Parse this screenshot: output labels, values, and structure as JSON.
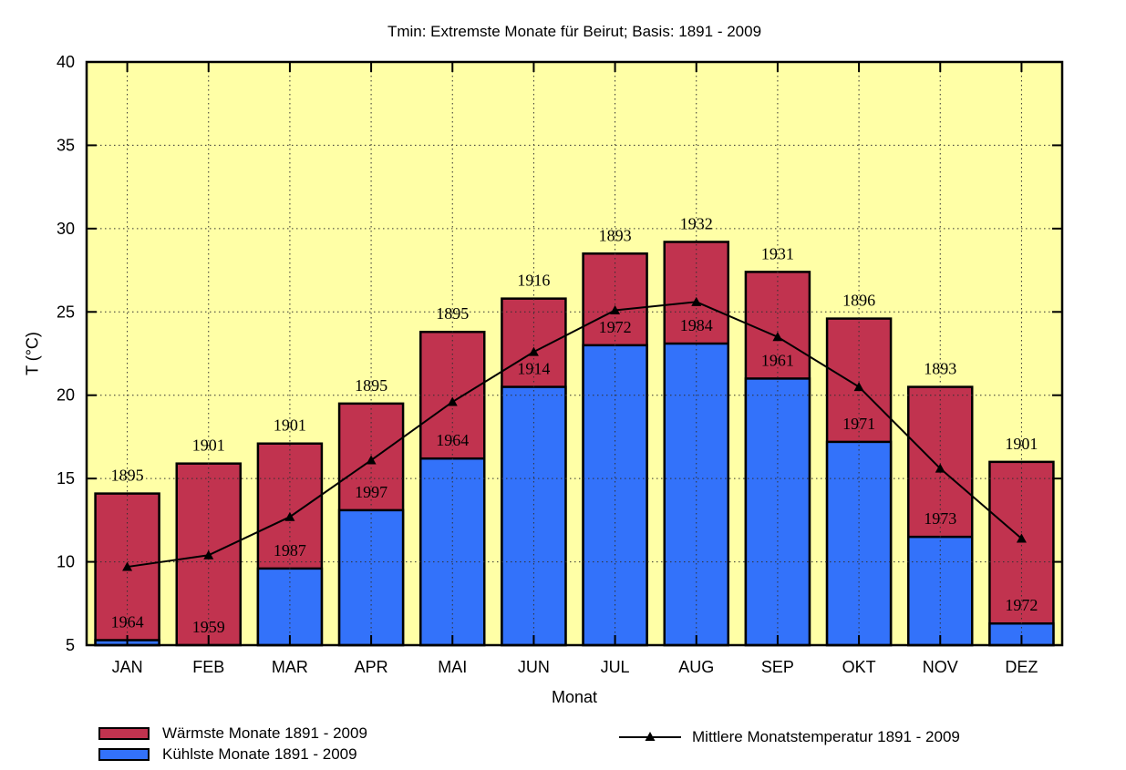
{
  "title": "Tmin: Extremste Monate für Beirut; Basis: 1891 - 2009",
  "chart_data": {
    "type": "bar",
    "title": "Tmin: Extremste Monate für Beirut; Basis: 1891 - 2009",
    "xlabel": "Monat",
    "ylabel": "T (°C)",
    "ylim": [
      5,
      40
    ],
    "yticks": [
      5,
      10,
      15,
      20,
      25,
      30,
      35,
      40
    ],
    "grid": "dotted, horizontal at yticks and vertical at month centers, drawn in front of bars",
    "legend_position": "bottom",
    "plot_bg_color": "#FFFFA6",
    "categories": [
      "JAN",
      "FEB",
      "MAR",
      "APR",
      "MAI",
      "JUN",
      "JUL",
      "AUG",
      "SEP",
      "OKT",
      "NOV",
      "DEZ"
    ],
    "series": [
      {
        "name": "Wärmste Monate 1891 - 2009",
        "type": "bar",
        "color": "#C1334F",
        "values": [
          14.1,
          15.9,
          17.1,
          19.5,
          23.8,
          25.8,
          28.5,
          29.2,
          27.4,
          24.6,
          20.5,
          16.0
        ],
        "year_labels": [
          "1895",
          "1901",
          "1901",
          "1895",
          "1895",
          "1916",
          "1893",
          "1932",
          "1931",
          "1896",
          "1893",
          "1901"
        ]
      },
      {
        "name": "Kühlste Monate 1891 - 2009",
        "type": "bar",
        "color": "#3372FA",
        "values": [
          5.3,
          5.0,
          9.6,
          13.1,
          16.2,
          20.5,
          23.0,
          23.1,
          21.0,
          17.2,
          11.5,
          6.3
        ],
        "year_labels": [
          "1964",
          "1959",
          "1987",
          "1997",
          "1964",
          "1914",
          "1972",
          "1984",
          "1961",
          "1971",
          "1973",
          "1972"
        ]
      },
      {
        "name": "Mittlere Monatstemperatur 1891 - 2009",
        "type": "line",
        "color": "#000000",
        "marker": "triangle-up",
        "values": [
          9.7,
          10.4,
          12.7,
          16.1,
          19.6,
          22.6,
          25.1,
          25.6,
          23.5,
          20.5,
          15.6,
          11.4
        ]
      }
    ]
  }
}
